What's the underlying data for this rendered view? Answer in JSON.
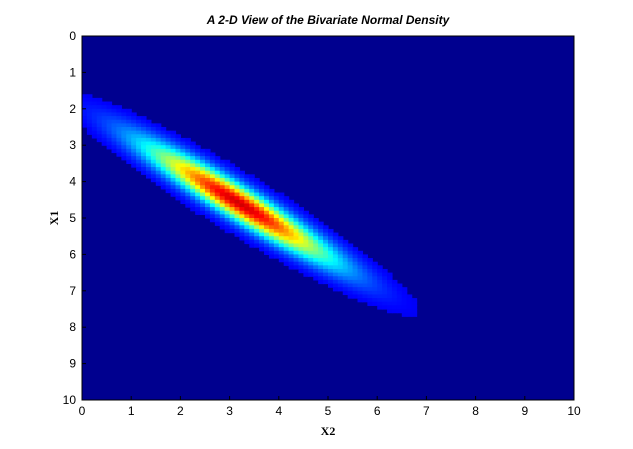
{
  "chart_data": {
    "type": "heatmap",
    "title": "A 2-D View of the Bivariate Normal Density",
    "xlabel": "X2",
    "ylabel": "X1",
    "xlim": [
      0,
      10
    ],
    "ylim": [
      0,
      10
    ],
    "y_direction": "reversed",
    "x_ticks": [
      "0",
      "1",
      "2",
      "3",
      "4",
      "5",
      "6",
      "7",
      "8",
      "9",
      "10"
    ],
    "y_ticks": [
      "0",
      "1",
      "2",
      "3",
      "4",
      "5",
      "6",
      "7",
      "8",
      "9",
      "10"
    ],
    "colormap": "jet",
    "grid": false,
    "density": {
      "mean_x2": 3.2,
      "mean_x1": 4.6,
      "sd_x2": 1.3,
      "sd_x1": 1.1,
      "correlation": 0.95
    },
    "colors": {
      "background": "#00008F",
      "peak": "#B20000"
    }
  }
}
